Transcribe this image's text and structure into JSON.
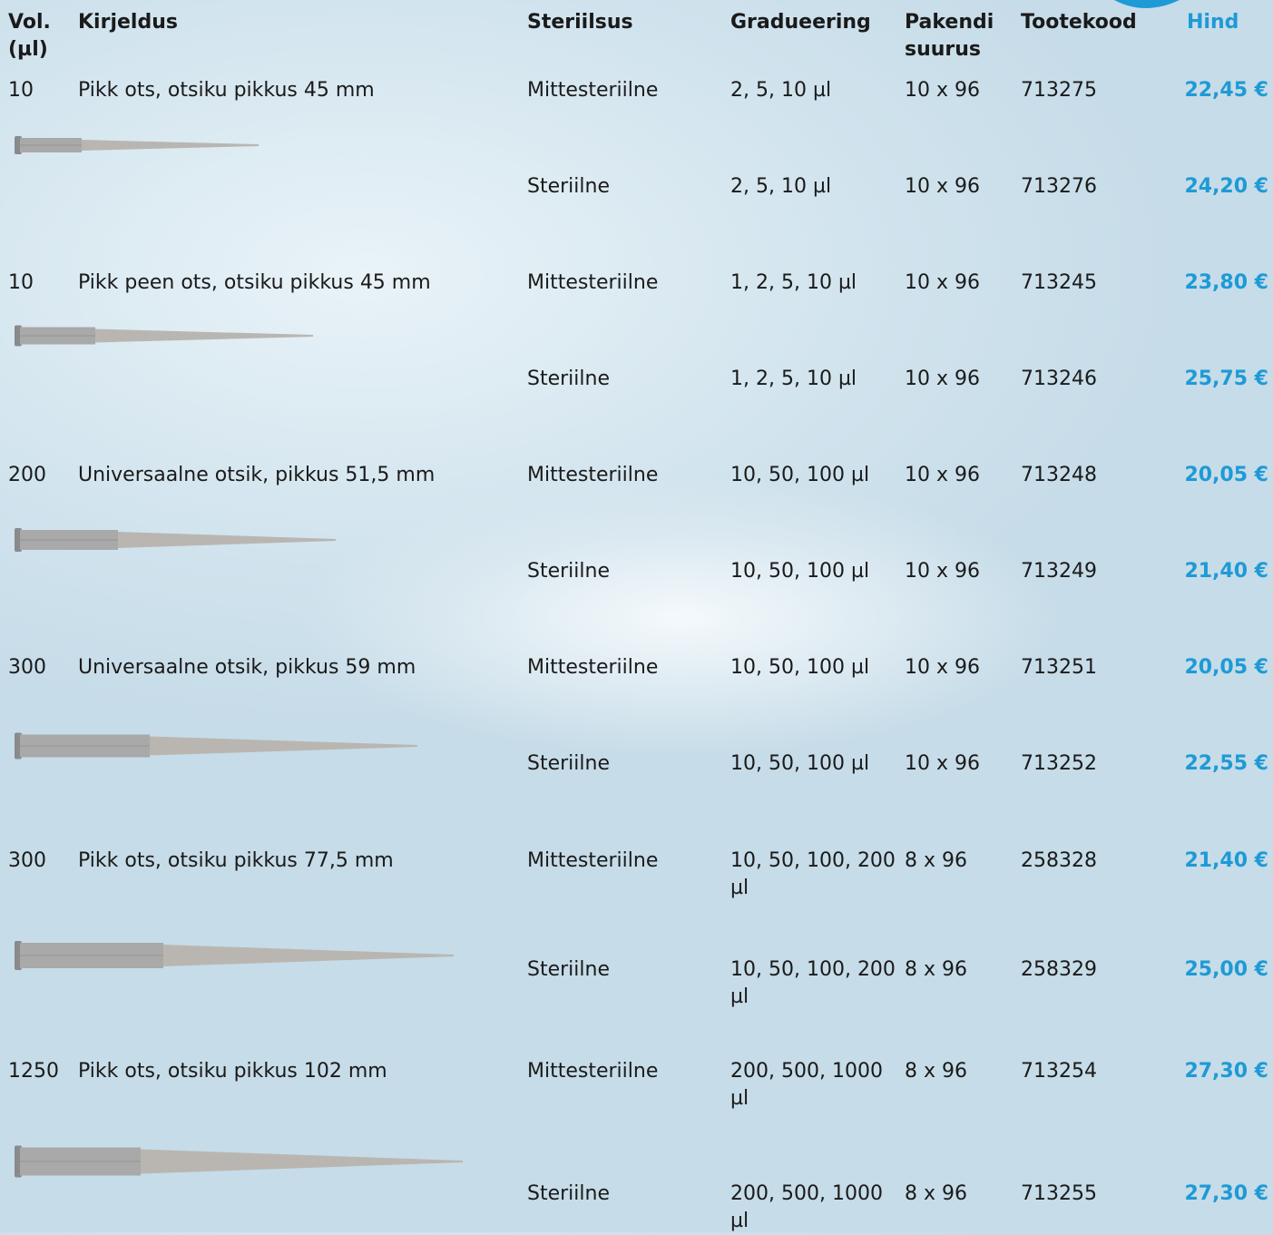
{
  "table": {
    "header": [
      "Vol. (µl)",
      "Kirjeldus",
      "Steriilsus",
      "Gradueering",
      "Pakendi suurus",
      "Tootekood",
      "Hind"
    ],
    "products": [
      {
        "vol": "10",
        "description": "Pikk ots, otsiku pikkus 45 mm",
        "variants": [
          {
            "sterility": "Mittesteriilne",
            "graduation": "2, 5, 10 µl",
            "pack": "10 x 96",
            "code": "713275",
            "price": "22,45 €"
          },
          {
            "sterility": "Steriilne",
            "graduation": "2, 5, 10 µl",
            "pack": "10 x 96",
            "code": "713276",
            "price": "24,20 €"
          }
        ]
      },
      {
        "vol": "10",
        "description": "Pikk peen ots, otsiku pikkus 45 mm",
        "variants": [
          {
            "sterility": "Mittesteriilne",
            "graduation": "1, 2, 5, 10 µl",
            "pack": "10 x 96",
            "code": "713245",
            "price": "23,80 €"
          },
          {
            "sterility": "Steriilne",
            "graduation": "1, 2, 5, 10 µl",
            "pack": "10 x 96",
            "code": "713246",
            "price": "25,75 €"
          }
        ]
      },
      {
        "vol": "200",
        "description": "Universaalne otsik, pikkus 51,5 mm",
        "variants": [
          {
            "sterility": "Mittesteriilne",
            "graduation": "10, 50, 100 µl",
            "pack": "10 x 96",
            "code": "713248",
            "price": "20,05 €"
          },
          {
            "sterility": "Steriilne",
            "graduation": "10, 50, 100 µl",
            "pack": "10 x 96",
            "code": "713249",
            "price": "21,40 €"
          }
        ]
      },
      {
        "vol": "300",
        "description": "Universaalne otsik, pikkus 59 mm",
        "variants": [
          {
            "sterility": "Mittesteriilne",
            "graduation": "10, 50, 100 µl",
            "pack": "10 x 96",
            "code": "713251",
            "price": "20,05 €"
          },
          {
            "sterility": "Steriilne",
            "graduation": "10, 50, 100 µl",
            "pack": "10 x 96",
            "code": "713252",
            "price": "22,55 €"
          }
        ]
      },
      {
        "vol": "300",
        "description": "Pikk ots, otsiku pikkus 77,5 mm",
        "variants": [
          {
            "sterility": "Mittesteriilne",
            "graduation": "10, 50, 100, 200 µl",
            "pack": "8 x 96",
            "code": "258328",
            "price": "21,40 €"
          },
          {
            "sterility": "Steriilne",
            "graduation": "10, 50, 100, 200 µl",
            "pack": "8 x 96",
            "code": "258329",
            "price": "25,00 €"
          }
        ]
      },
      {
        "vol": "1250",
        "description": "Pikk ots, otsiku pikkus 102 mm",
        "variants": [
          {
            "sterility": "Mittesteriilne",
            "graduation": "200, 500, 1000 µl",
            "pack": "8 x 96",
            "code": "713254",
            "price": "27,30 €"
          },
          {
            "sterility": "Steriilne",
            "graduation": "200, 500, 1000 µl",
            "pack": "8 x 96",
            "code": "713255",
            "price": "27,30 €"
          }
        ]
      }
    ]
  }
}
